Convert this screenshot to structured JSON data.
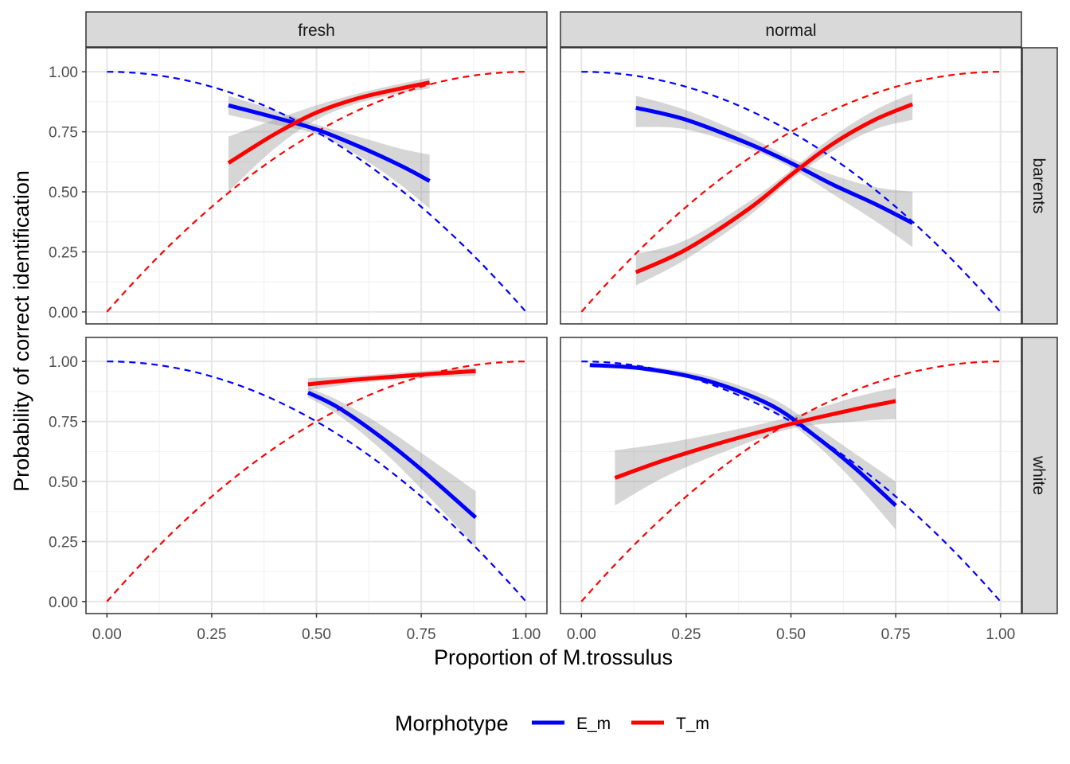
{
  "chart_data": {
    "type": "line",
    "layout": "facet-grid 2x2",
    "xlabel": "Proportion of M.trossulus",
    "ylabel": "Probability of correct identification",
    "xlim": [
      0,
      1
    ],
    "ylim": [
      0,
      1
    ],
    "x_ticks": [
      "0.00",
      "0.25",
      "0.50",
      "0.75",
      "1.00"
    ],
    "y_ticks": [
      "0.00",
      "0.25",
      "0.50",
      "0.75",
      "1.00"
    ],
    "grid": true,
    "legend": {
      "title": "Morphotype",
      "position": "bottom",
      "entries": [
        {
          "name": "E_m",
          "color": "#0000FF"
        },
        {
          "name": "T_m",
          "color": "#FF0000"
        }
      ]
    },
    "columns": [
      "fresh",
      "normal"
    ],
    "rows": [
      "barents",
      "white"
    ],
    "reference_curves": {
      "style": "dashed",
      "E_m": {
        "formula": "1 - x^2",
        "x": [
          0,
          0.25,
          0.5,
          0.75,
          1.0
        ],
        "y": [
          1.0,
          0.94,
          0.75,
          0.44,
          0.0
        ]
      },
      "T_m": {
        "formula": "1 - (1 - x)^2",
        "x": [
          0,
          0.25,
          0.5,
          0.75,
          1.0
        ],
        "y": [
          0.0,
          0.44,
          0.75,
          0.94,
          1.0
        ]
      }
    },
    "panels": [
      {
        "col": "fresh",
        "row": "barents",
        "series": [
          {
            "name": "E_m",
            "x": [
              0.29,
              0.4,
              0.5,
              0.6,
              0.7,
              0.77
            ],
            "y": [
              0.86,
              0.81,
              0.76,
              0.69,
              0.61,
              0.545
            ],
            "ci_lower": [
              0.82,
              0.78,
              0.74,
              0.65,
              0.53,
              0.43
            ],
            "ci_upper": [
              0.9,
              0.84,
              0.78,
              0.73,
              0.68,
              0.655
            ]
          },
          {
            "name": "T_m",
            "x": [
              0.29,
              0.4,
              0.5,
              0.6,
              0.7,
              0.77
            ],
            "y": [
              0.62,
              0.74,
              0.83,
              0.89,
              0.93,
              0.955
            ],
            "ci_lower": [
              0.5,
              0.68,
              0.8,
              0.87,
              0.91,
              0.93
            ],
            "ci_upper": [
              0.73,
              0.8,
              0.86,
              0.91,
              0.95,
              0.975
            ]
          }
        ]
      },
      {
        "col": "normal",
        "row": "barents",
        "series": [
          {
            "name": "E_m",
            "x": [
              0.13,
              0.25,
              0.4,
              0.5,
              0.6,
              0.7,
              0.79
            ],
            "y": [
              0.85,
              0.8,
              0.7,
              0.62,
              0.53,
              0.45,
              0.37
            ],
            "ci_lower": [
              0.77,
              0.76,
              0.68,
              0.6,
              0.49,
              0.38,
              0.27
            ],
            "ci_upper": [
              0.9,
              0.84,
              0.73,
              0.64,
              0.57,
              0.52,
              0.5
            ]
          },
          {
            "name": "T_m",
            "x": [
              0.13,
              0.25,
              0.4,
              0.5,
              0.6,
              0.7,
              0.79
            ],
            "y": [
              0.165,
              0.26,
              0.43,
              0.57,
              0.7,
              0.8,
              0.865
            ],
            "ci_lower": [
              0.11,
              0.22,
              0.4,
              0.55,
              0.67,
              0.76,
              0.8
            ],
            "ci_upper": [
              0.24,
              0.3,
              0.46,
              0.59,
              0.73,
              0.84,
              0.91
            ]
          }
        ]
      },
      {
        "col": "fresh",
        "row": "white",
        "series": [
          {
            "name": "E_m",
            "x": [
              0.48,
              0.55,
              0.65,
              0.75,
              0.88
            ],
            "y": [
              0.87,
              0.81,
              0.69,
              0.55,
              0.35
            ],
            "ci_lower": [
              0.85,
              0.78,
              0.64,
              0.47,
              0.23
            ],
            "ci_upper": [
              0.89,
              0.84,
              0.74,
              0.62,
              0.46
            ]
          },
          {
            "name": "T_m",
            "x": [
              0.48,
              0.6,
              0.75,
              0.88
            ],
            "y": [
              0.905,
              0.925,
              0.945,
              0.96
            ],
            "ci_lower": [
              0.88,
              0.91,
              0.93,
              0.94
            ],
            "ci_upper": [
              0.93,
              0.94,
              0.96,
              0.975
            ]
          }
        ]
      },
      {
        "col": "normal",
        "row": "white",
        "series": [
          {
            "name": "E_m",
            "x": [
              0.02,
              0.15,
              0.3,
              0.45,
              0.55,
              0.65,
              0.75
            ],
            "y": [
              0.985,
              0.97,
              0.92,
              0.82,
              0.7,
              0.56,
              0.4
            ],
            "ci_lower": [
              0.98,
              0.96,
              0.91,
              0.8,
              0.67,
              0.5,
              0.3
            ],
            "ci_upper": [
              0.99,
              0.98,
              0.94,
              0.85,
              0.74,
              0.62,
              0.5
            ]
          },
          {
            "name": "T_m",
            "x": [
              0.08,
              0.2,
              0.35,
              0.5,
              0.65,
              0.75
            ],
            "y": [
              0.515,
              0.59,
              0.67,
              0.74,
              0.8,
              0.835
            ],
            "ci_lower": [
              0.4,
              0.52,
              0.63,
              0.72,
              0.75,
              0.76
            ],
            "ci_upper": [
              0.63,
              0.66,
              0.71,
              0.77,
              0.85,
              0.89
            ]
          }
        ]
      }
    ]
  }
}
